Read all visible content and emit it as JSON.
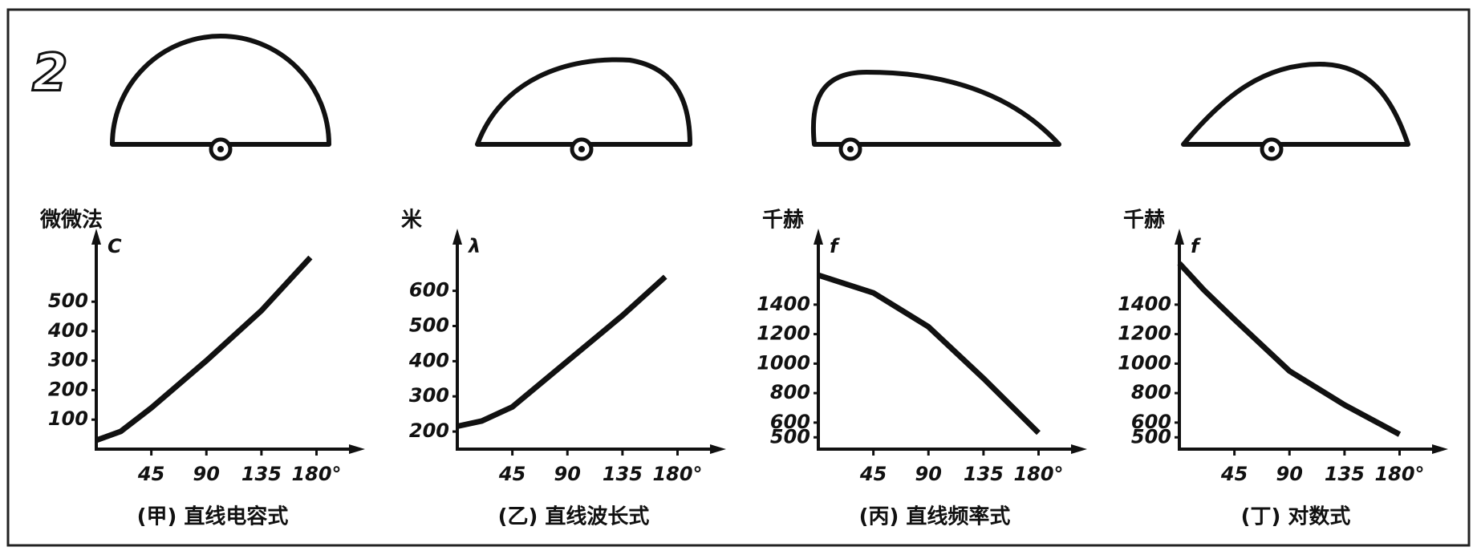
{
  "figure_label": "2",
  "chart_data": [
    {
      "type": "line",
      "title": "(甲) 直线电容式",
      "y_unit": "微微法",
      "y_symbol": "C",
      "x": [
        0,
        20,
        45,
        90,
        135,
        175
      ],
      "values": [
        30,
        60,
        140,
        300,
        470,
        650
      ],
      "color": "#111111",
      "xlim": [
        0,
        200
      ],
      "xticks": [
        45,
        90,
        135,
        {
          "value": 180,
          "label": "180°"
        }
      ],
      "ylim": [
        0,
        680
      ],
      "yticks": [
        100,
        200,
        300,
        400,
        500
      ]
    },
    {
      "type": "line",
      "title": "(乙) 直线波长式",
      "y_unit": "米",
      "y_symbol": "λ",
      "x": [
        0,
        20,
        45,
        90,
        135,
        170
      ],
      "values": [
        215,
        230,
        270,
        400,
        530,
        640
      ],
      "color": "#111111",
      "xlim": [
        0,
        200
      ],
      "xticks": [
        45,
        90,
        135,
        {
          "value": 180,
          "label": "180°"
        }
      ],
      "ylim": [
        150,
        720
      ],
      "yticks": [
        200,
        300,
        400,
        500,
        600
      ]
    },
    {
      "type": "line",
      "title": "(丙) 直线频率式",
      "y_unit": "千赫",
      "y_symbol": "f",
      "x": [
        0,
        45,
        90,
        135,
        180
      ],
      "values": [
        1600,
        1480,
        1250,
        900,
        530
      ],
      "color": "#111111",
      "xlim": [
        0,
        200
      ],
      "xticks": [
        45,
        90,
        135,
        {
          "value": 180,
          "label": "180°"
        }
      ],
      "ylim": [
        420,
        1780
      ],
      "yticks": [
        500,
        600,
        800,
        1000,
        1200,
        1400
      ]
    },
    {
      "type": "line",
      "title": "(丁) 对数式",
      "y_unit": "千赫",
      "y_symbol": "f",
      "x": [
        0,
        20,
        45,
        90,
        135,
        180
      ],
      "values": [
        1680,
        1500,
        1300,
        950,
        720,
        520
      ],
      "color": "#111111",
      "xlim": [
        0,
        200
      ],
      "xticks": [
        45,
        90,
        135,
        {
          "value": 180,
          "label": "180°"
        }
      ],
      "ylim": [
        420,
        1780
      ],
      "yticks": [
        500,
        600,
        800,
        1000,
        1200,
        1400
      ]
    }
  ]
}
